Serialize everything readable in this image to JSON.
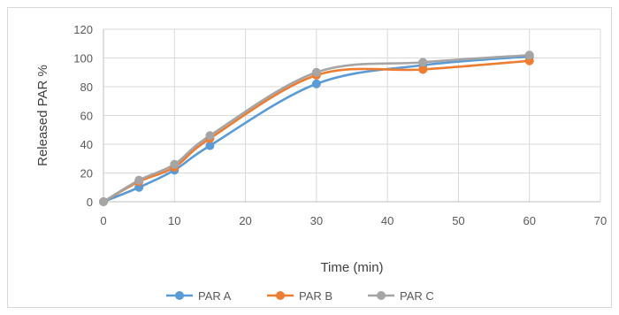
{
  "chart_data": {
    "type": "line",
    "smooth": true,
    "title": "",
    "xlabel": "Time (min)",
    "ylabel": "Released PAR %",
    "xlim": [
      0,
      70
    ],
    "ylim": [
      0,
      120
    ],
    "xticks": [
      0,
      10,
      20,
      30,
      40,
      50,
      60,
      70
    ],
    "yticks": [
      0,
      20,
      40,
      60,
      80,
      100,
      120
    ],
    "grid": true,
    "legend_position": "bottom",
    "x": [
      0,
      5,
      10,
      15,
      30,
      45,
      60
    ],
    "series": [
      {
        "name": "PAR A",
        "color": "#5b9bd5",
        "values": [
          0,
          10,
          22,
          39,
          82,
          95,
          101
        ]
      },
      {
        "name": "PAR B",
        "color": "#ed7d31",
        "values": [
          0,
          14,
          24,
          44,
          88,
          92,
          98
        ]
      },
      {
        "name": "PAR C",
        "color": "#a5a5a5",
        "values": [
          0,
          15,
          26,
          46,
          90,
          97,
          102
        ]
      }
    ]
  }
}
